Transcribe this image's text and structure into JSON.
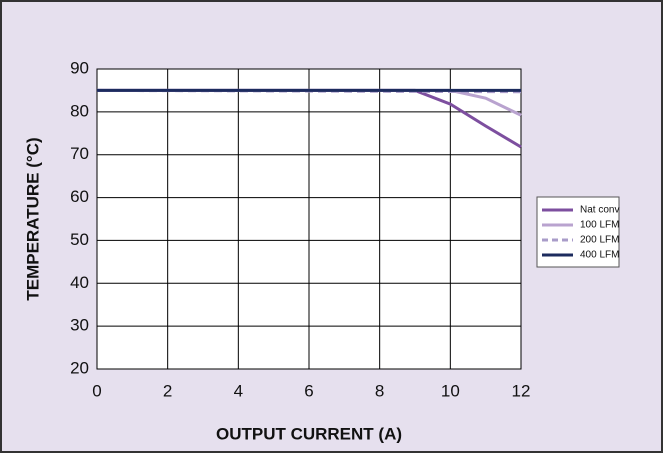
{
  "chart_data": {
    "type": "line",
    "xlabel": "OUTPUT CURRENT (A)",
    "ylabel": "TEMPERATURE (°C)",
    "xlim": [
      0,
      12
    ],
    "xticks": [
      0,
      2,
      4,
      6,
      8,
      10,
      12
    ],
    "ylim": [
      20,
      90
    ],
    "yticks": [
      20,
      30,
      40,
      50,
      60,
      70,
      80,
      90
    ],
    "grid": true,
    "legend": "right",
    "series": [
      {
        "name": "Nat conv",
        "color": "#7d4f9f",
        "dash": false,
        "x": [
          0,
          9,
          10,
          11,
          12
        ],
        "values": [
          85,
          85,
          81.8,
          76.7,
          71.8
        ]
      },
      {
        "name": "100 LFM",
        "color": "#b9a3cf",
        "dash": false,
        "x": [
          0,
          10,
          11,
          12
        ],
        "values": [
          85,
          85,
          83.2,
          79.2
        ]
      },
      {
        "name": "200 LFM",
        "color": "#a99cc9",
        "dash": true,
        "x": [
          0,
          12
        ],
        "values": [
          85,
          84.7
        ]
      },
      {
        "name": "400 LFM",
        "color": "#1c2b5e",
        "dash": false,
        "x": [
          0,
          12
        ],
        "values": [
          85,
          85
        ]
      }
    ]
  }
}
